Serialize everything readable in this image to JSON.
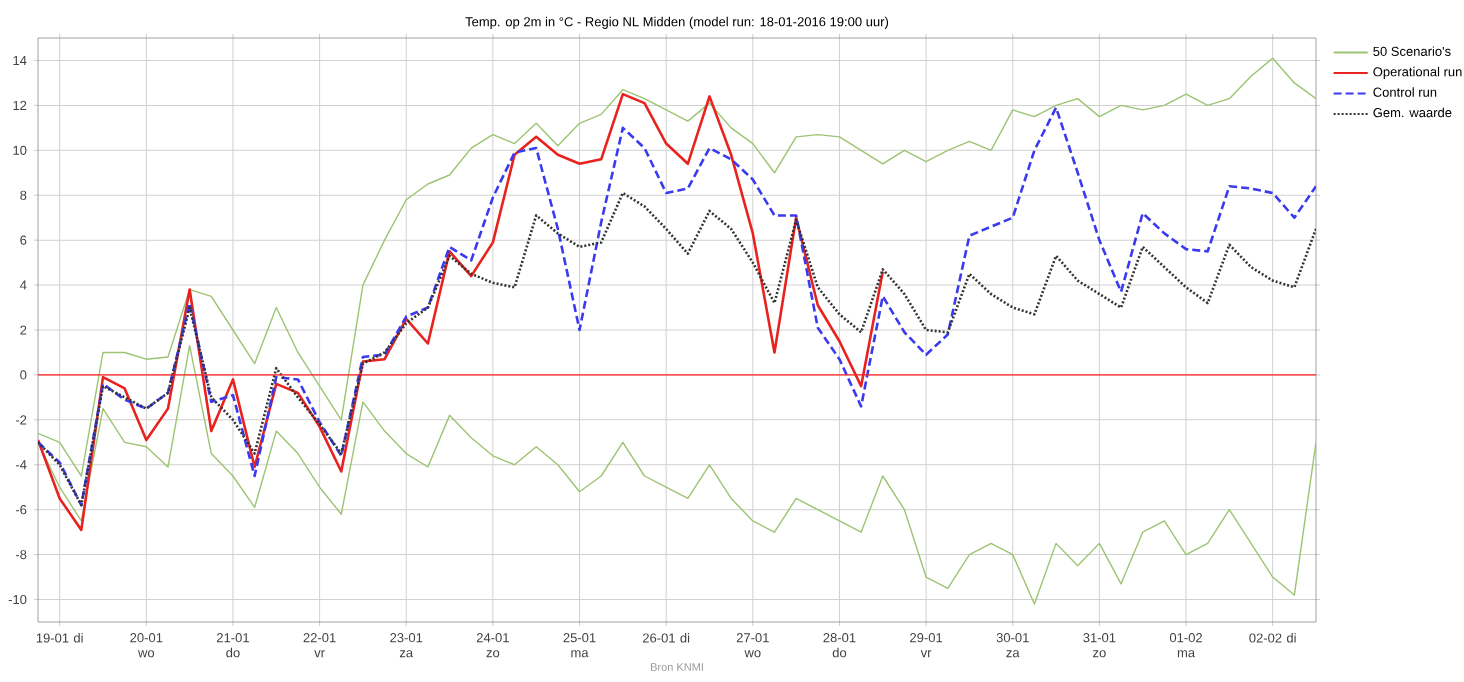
{
  "chart_data": {
    "type": "line",
    "title": "Temp. op 2m in °C - Regio NL Midden (model run: 18-01-2016 19:00 uur)",
    "annotations": [
      "Bron KNMI"
    ],
    "x": [
      "2016-01-18T18:00",
      "2016-01-19T00:00",
      "2016-01-19T06:00",
      "2016-01-19T12:00",
      "2016-01-19T18:00",
      "2016-01-20T00:00",
      "2016-01-20T06:00",
      "2016-01-20T12:00",
      "2016-01-20T18:00",
      "2016-01-21T00:00",
      "2016-01-21T06:00",
      "2016-01-21T12:00",
      "2016-01-21T18:00",
      "2016-01-22T00:00",
      "2016-01-22T06:00",
      "2016-01-22T12:00",
      "2016-01-22T18:00",
      "2016-01-23T00:00",
      "2016-01-23T06:00",
      "2016-01-23T12:00",
      "2016-01-23T18:00",
      "2016-01-24T00:00",
      "2016-01-24T06:00",
      "2016-01-24T12:00",
      "2016-01-24T18:00",
      "2016-01-25T00:00",
      "2016-01-25T06:00",
      "2016-01-25T12:00",
      "2016-01-25T18:00",
      "2016-01-26T00:00",
      "2016-01-26T06:00",
      "2016-01-26T12:00",
      "2016-01-26T18:00",
      "2016-01-27T00:00",
      "2016-01-27T06:00",
      "2016-01-27T12:00",
      "2016-01-27T18:00",
      "2016-01-28T00:00",
      "2016-01-28T06:00",
      "2016-01-28T12:00",
      "2016-01-28T18:00",
      "2016-01-29T00:00",
      "2016-01-29T06:00",
      "2016-01-29T12:00",
      "2016-01-29T18:00",
      "2016-01-30T00:00",
      "2016-01-30T06:00",
      "2016-01-30T12:00",
      "2016-01-30T18:00",
      "2016-01-31T00:00",
      "2016-01-31T06:00",
      "2016-01-31T12:00",
      "2016-01-31T18:00",
      "2016-02-01T00:00",
      "2016-02-01T06:00",
      "2016-02-01T12:00",
      "2016-02-01T18:00",
      "2016-02-02T00:00",
      "2016-02-02T06:00",
      "2016-02-02T12:00"
    ],
    "xlim": [
      "2016-01-18T18:00",
      "2016-02-02T12:00"
    ],
    "xticks": [
      {
        "value": "2016-01-19",
        "label": "19-01 di"
      },
      {
        "value": "2016-01-20",
        "label": "20-01 wo"
      },
      {
        "value": "2016-01-21",
        "label": "21-01 do"
      },
      {
        "value": "2016-01-22",
        "label": "22-01 vr"
      },
      {
        "value": "2016-01-23",
        "label": "23-01 za"
      },
      {
        "value": "2016-01-24",
        "label": "24-01 zo"
      },
      {
        "value": "2016-01-25",
        "label": "25-01 ma"
      },
      {
        "value": "2016-01-26",
        "label": "26-01 di"
      },
      {
        "value": "2016-01-27",
        "label": "27-01 wo"
      },
      {
        "value": "2016-01-28",
        "label": "28-01 do"
      },
      {
        "value": "2016-01-29",
        "label": "29-01 vr"
      },
      {
        "value": "2016-01-30",
        "label": "30-01 za"
      },
      {
        "value": "2016-01-31",
        "label": "31-01 zo"
      },
      {
        "value": "2016-02-01",
        "label": "01-02 ma"
      },
      {
        "value": "2016-02-02",
        "label": "02-02 di"
      }
    ],
    "ylim": [
      -11,
      15
    ],
    "yticks": [
      -10,
      -8,
      -6,
      -4,
      -2,
      0,
      2,
      4,
      6,
      8,
      10,
      12,
      14
    ],
    "grid": true,
    "legend": "top right",
    "marker": "none",
    "ref_lines": [
      {
        "axis": "y",
        "value": 0,
        "color": "#ff2020"
      }
    ],
    "series": [
      {
        "name": "50 Scenario's",
        "color": "#9cc472",
        "line_style": "solid",
        "values": [
          -2.6,
          -3,
          -4.5,
          1.0,
          1.0,
          0.7,
          0.8,
          3.8,
          3.5,
          2,
          0.5,
          3.0,
          1,
          -0.5,
          -2,
          4,
          6,
          7.8,
          8.5,
          8.9,
          10.1,
          10.7,
          10.3,
          11.2,
          10.2,
          11.2,
          11.6,
          12.7,
          12.3,
          11.8,
          11.3,
          12.1,
          11.0,
          10.3,
          9.0,
          10.6,
          10.7,
          10.6,
          10.0,
          9.4,
          10.0,
          9.5,
          10.0,
          10.4,
          10.0,
          11.8,
          11.5,
          12.0,
          12.3,
          11.5,
          12.0,
          11.8,
          12.0,
          12.5,
          12.0,
          12.3,
          13.3,
          14.1,
          13.0,
          12.3
        ]
      },
      {
        "color": "#9cc472",
        "line_style": "solid",
        "values": [
          -3.0,
          -5,
          -6.5,
          -1.5,
          -3.0,
          -3.2,
          -4.1,
          1.3,
          -3.5,
          -4.5,
          -5.9,
          -2.5,
          -3.5,
          -5,
          -6.2,
          -1.2,
          -2.5,
          -3.5,
          -4.1,
          -1.8,
          -2.8,
          -3.6,
          -4.0,
          -3.2,
          -4.0,
          -5.2,
          -4.5,
          -3.0,
          -4.5,
          -5.0,
          -5.5,
          -4.0,
          -5.5,
          -6.5,
          -7.0,
          -5.5,
          -6.0,
          -6.5,
          -7.0,
          -4.5,
          -6.0,
          -9.0,
          -9.5,
          -8.0,
          -7.5,
          -8.0,
          -10.2,
          -7.5,
          -8.5,
          -7.5,
          -9.3,
          -7.0,
          -6.5,
          -8.0,
          -7.5,
          -6.0,
          -7.5,
          -9.0,
          -9.8,
          -3.0
        ]
      },
      {
        "name": "Operational run",
        "color": "#e8231f",
        "line_style": "solid",
        "x": [
          "2016-01-18T18:00",
          "2016-01-19T00:00",
          "2016-01-19T06:00",
          "2016-01-19T12:00",
          "2016-01-19T18:00",
          "2016-01-20T00:00",
          "2016-01-20T06:00",
          "2016-01-20T12:00",
          "2016-01-20T18:00",
          "2016-01-21T00:00",
          "2016-01-21T06:00",
          "2016-01-21T12:00",
          "2016-01-21T18:00",
          "2016-01-22T00:00",
          "2016-01-22T06:00",
          "2016-01-22T12:00",
          "2016-01-22T18:00",
          "2016-01-23T00:00",
          "2016-01-23T06:00",
          "2016-01-23T12:00",
          "2016-01-23T18:00",
          "2016-01-24T00:00",
          "2016-01-24T06:00",
          "2016-01-24T12:00",
          "2016-01-24T18:00",
          "2016-01-25T00:00",
          "2016-01-25T06:00",
          "2016-01-25T12:00",
          "2016-01-25T18:00",
          "2016-01-26T00:00",
          "2016-01-26T06:00",
          "2016-01-26T12:00",
          "2016-01-26T18:00",
          "2016-01-27T00:00",
          "2016-01-27T06:00",
          "2016-01-27T12:00",
          "2016-01-27T18:00",
          "2016-01-28T00:00",
          "2016-01-28T06:00",
          "2016-01-28T12:00"
        ],
        "values": [
          -2.9,
          -5.5,
          -6.9,
          -0.1,
          -0.6,
          -2.9,
          -1.5,
          3.8,
          -2.5,
          -0.2,
          -4.1,
          -0.4,
          -0.8,
          -2.3,
          -4.3,
          0.6,
          0.7,
          2.5,
          1.4,
          5.5,
          4.4,
          5.9,
          9.8,
          10.6,
          9.8,
          9.4,
          9.6,
          12.5,
          12.1,
          10.3,
          9.4,
          12.4,
          9.8,
          6.3,
          1.0,
          7.0,
          3.1,
          1.5,
          -0.5,
          4.6
        ]
      },
      {
        "name": "Control run",
        "color": "#3a3aee",
        "line_style": "dashed",
        "values": [
          -3.0,
          -3.9,
          -5.8,
          -0.4,
          -1.1,
          -1.5,
          -0.8,
          3.2,
          -1.2,
          -0.9,
          -4.5,
          -0.1,
          -0.2,
          -2.1,
          -3.6,
          0.8,
          0.9,
          2.6,
          3.0,
          5.7,
          5.1,
          7.9,
          9.9,
          10.1,
          6.5,
          2.0,
          6.8,
          11.0,
          10.1,
          8.1,
          8.3,
          10.1,
          9.6,
          8.7,
          7.1,
          7.1,
          2.1,
          0.7,
          -1.4,
          3.5,
          1.9,
          0.9,
          1.8,
          6.2,
          6.6,
          7.0,
          10.0,
          11.9,
          9.0,
          6.0,
          3.7,
          7.2,
          6.3,
          5.6,
          5.5,
          8.4,
          8.3,
          8.1,
          7.0,
          8.4
        ]
      },
      {
        "name": "Gem. waarde",
        "color": "#333333",
        "line_style": "dotted",
        "values": [
          -3,
          -4,
          -5.8,
          -0.5,
          -1,
          -1.5,
          -0.8,
          3,
          -1,
          -2,
          -3.5,
          0.3,
          -1,
          -2.2,
          -3.5,
          0.5,
          1,
          2.3,
          3,
          5.3,
          4.5,
          4.1,
          3.9,
          7.1,
          6.3,
          5.7,
          5.9,
          8.1,
          7.5,
          6.5,
          5.4,
          7.3,
          6.5,
          5.0,
          3.2,
          6.9,
          3.9,
          2.7,
          1.9,
          4.7,
          3.6,
          2.0,
          1.9,
          4.5,
          3.6,
          3.0,
          2.7,
          5.3,
          4.2,
          3.6,
          3.0,
          5.7,
          4.8,
          3.9,
          3.2,
          5.8,
          4.8,
          4.2,
          3.9,
          6.5
        ]
      }
    ]
  }
}
